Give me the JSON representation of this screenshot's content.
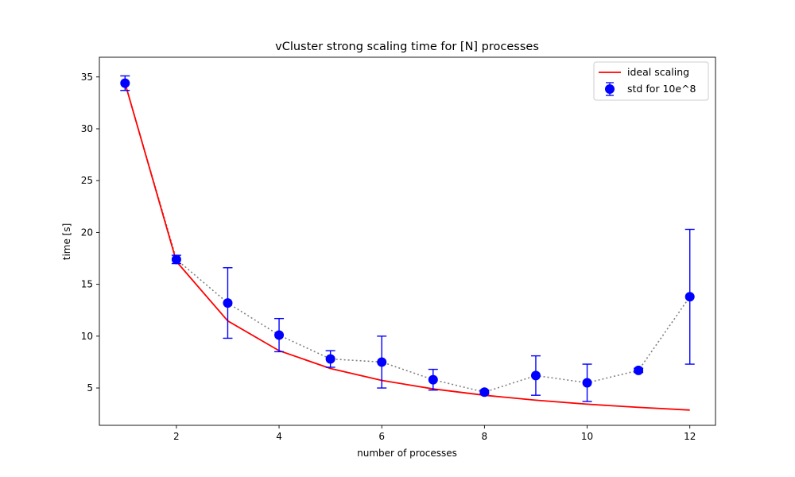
{
  "chart_data": {
    "type": "line",
    "title": "vCluster strong scaling time for [N] processes",
    "xlabel": "number of processes",
    "ylabel": "time [s]",
    "xlim": [
      0.5,
      12.5
    ],
    "ylim": [
      1.4,
      36.9
    ],
    "xticks": [
      2,
      4,
      6,
      8,
      10,
      12
    ],
    "yticks": [
      5,
      10,
      15,
      20,
      25,
      30,
      35
    ],
    "grid": false,
    "legend_position": "top-right",
    "series": [
      {
        "name": "ideal scaling",
        "kind": "line",
        "color": "#ff0000",
        "x": [
          1,
          2,
          3,
          4,
          5,
          6,
          7,
          8,
          9,
          10,
          11,
          12
        ],
        "y": [
          34.4,
          17.2,
          11.47,
          8.6,
          6.88,
          5.73,
          4.91,
          4.3,
          3.82,
          3.44,
          3.13,
          2.87
        ]
      },
      {
        "name": "std for 10e^8",
        "kind": "errorbar",
        "color": "#0000ff",
        "line_color": "#808080",
        "x": [
          1,
          2,
          3,
          4,
          5,
          6,
          7,
          8,
          9,
          10,
          11,
          12
        ],
        "y": [
          34.4,
          17.4,
          13.2,
          10.1,
          7.8,
          7.5,
          5.8,
          4.6,
          6.2,
          5.5,
          6.7,
          13.8
        ],
        "err": [
          0.7,
          0.4,
          3.4,
          1.6,
          0.8,
          2.5,
          1.0,
          0.2,
          1.9,
          1.8,
          0.2,
          6.5
        ]
      }
    ]
  }
}
